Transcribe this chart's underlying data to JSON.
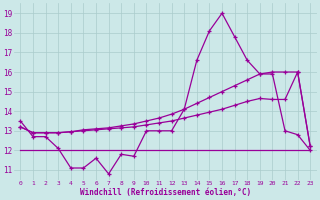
{
  "x": [
    0,
    1,
    2,
    3,
    4,
    5,
    6,
    7,
    8,
    9,
    10,
    11,
    12,
    13,
    14,
    15,
    16,
    17,
    18,
    19,
    20,
    21,
    22,
    23
  ],
  "line_jagged": [
    13.5,
    12.7,
    12.7,
    12.1,
    11.1,
    11.1,
    11.6,
    10.8,
    11.8,
    11.7,
    13.0,
    13.0,
    13.0,
    14.1,
    16.6,
    18.1,
    19.0,
    17.8,
    16.6,
    15.9,
    15.9,
    13.0,
    12.8,
    12.0
  ],
  "line_trend1": [
    13.2,
    12.9,
    12.9,
    12.9,
    12.95,
    13.0,
    13.05,
    13.1,
    13.15,
    13.2,
    13.3,
    13.4,
    13.5,
    13.65,
    13.8,
    13.95,
    14.1,
    14.3,
    14.5,
    14.65,
    14.6,
    14.6,
    16.0,
    12.2
  ],
  "line_trend2": [
    13.2,
    12.9,
    12.9,
    12.9,
    12.95,
    13.05,
    13.1,
    13.15,
    13.25,
    13.35,
    13.5,
    13.65,
    13.85,
    14.1,
    14.4,
    14.7,
    15.0,
    15.3,
    15.6,
    15.9,
    16.0,
    16.0,
    16.0,
    12.2
  ],
  "line_flat": [
    12.0,
    12.0,
    12.0,
    12.0,
    12.0,
    12.0,
    12.0,
    12.0,
    12.0,
    12.0,
    12.0,
    12.0,
    12.0,
    12.0,
    12.0,
    12.0,
    12.0,
    12.0,
    12.0,
    12.0,
    12.0,
    12.0,
    12.0,
    12.0
  ],
  "color": "#990099",
  "bg_color": "#cce8e8",
  "grid_color": "#aacccc",
  "ylim_min": 10.5,
  "ylim_max": 19.5,
  "yticks": [
    11,
    12,
    13,
    14,
    15,
    16,
    17,
    18,
    19
  ],
  "xlabel_label": "Windchill (Refroidissement éolien,°C)"
}
